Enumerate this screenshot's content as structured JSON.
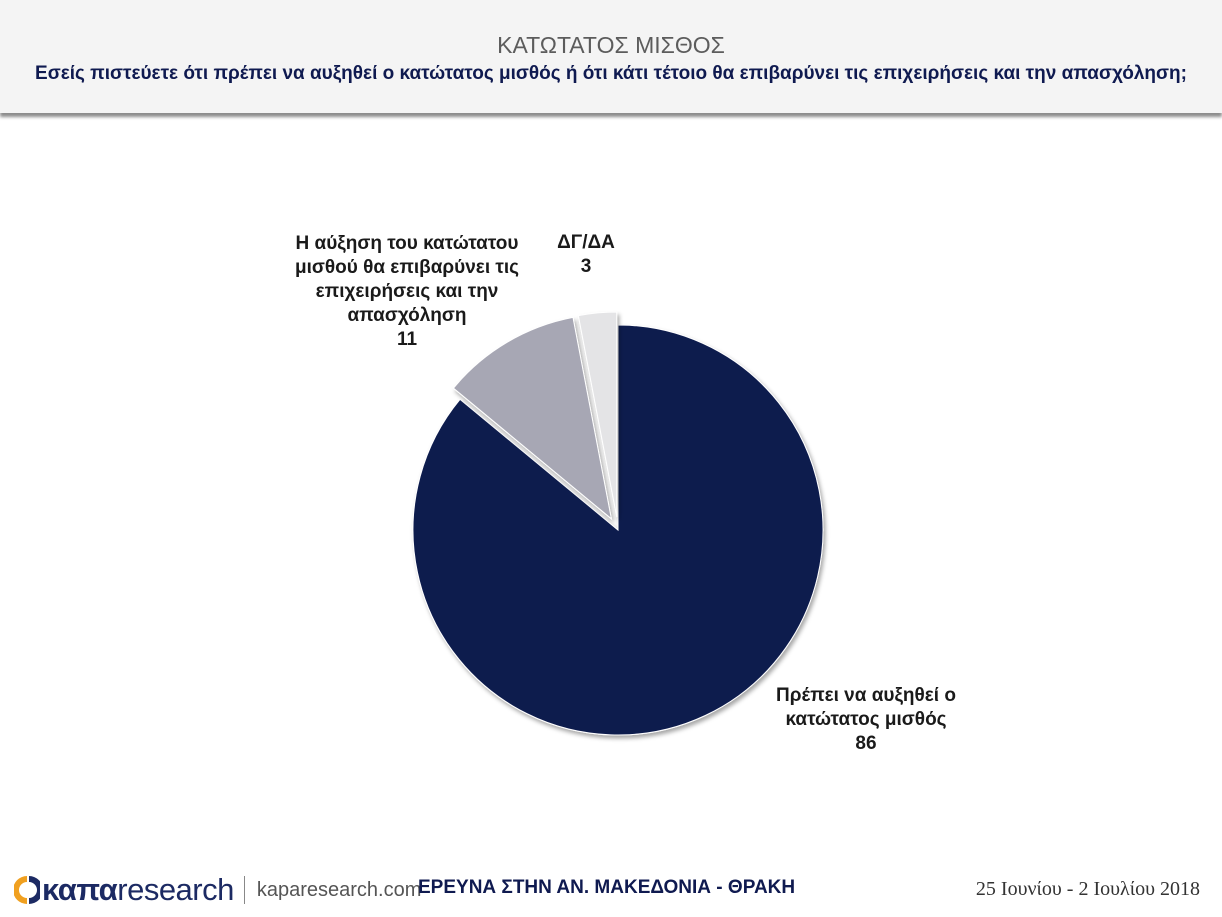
{
  "header": {
    "title": "ΚΑΤΩΤΑΤΟΣ ΜΙΣΘΟΣ",
    "subtitle": "Εσείς πιστεύετε ότι πρέπει να αυξηθεί ο κατώτατος μισθός ή ότι κάτι τέτοιο θα επιβαρύνει τις επιχειρήσεις και την απασχόληση;"
  },
  "chart_data": {
    "type": "pie",
    "slices": [
      {
        "label_lines": [
          "Πρέπει να αυξηθεί ο",
          "κατώτατος μισθός"
        ],
        "value": 86,
        "value_label": "86",
        "color": "#0d1a4e"
      },
      {
        "label_lines": [
          "Η αύξηση του κατώτατου",
          "μισθού θα επιβαρύνει τις",
          "επιχειρήσεις και την",
          "απασχόληση"
        ],
        "value": 11,
        "value_label": "11",
        "color": "#a7a7b4"
      },
      {
        "label_lines": [
          "ΔΓ/ΔΑ"
        ],
        "value": 3,
        "value_label": "3",
        "color": "#e4e4e6"
      }
    ]
  },
  "footer": {
    "logo_bold": "καπα",
    "logo_light": "research",
    "url": "kaparesearch.com",
    "survey": "ΕΡΕΥΝΑ ΣΤΗΝ ΑΝ. ΜΑΚΕΔΟΝΙΑ - ΘΡΑΚΗ",
    "date": "25 Ιουνίου - 2 Ιουλίου 2018",
    "brand_color": "#1c2a63",
    "accent_color": "#f0a020"
  }
}
